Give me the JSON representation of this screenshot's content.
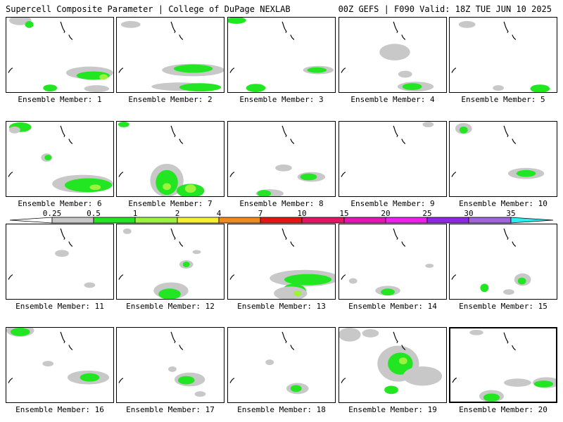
{
  "header": {
    "title_left": "Supercell Composite Parameter | College of DuPage NEXLAB",
    "title_right": "00Z GEFS | F090 Valid: 18Z TUE JUN 10 2025"
  },
  "colors": {
    "gray": "#c8c8c8",
    "green": "#22e622",
    "lightgreen": "#9cf23c",
    "yellow": "#f5f030",
    "orange": "#f08a1e",
    "red": "#e61414",
    "crimson": "#e61464",
    "magenta": "#e614b4",
    "pink": "#f01ef0",
    "purple": "#8c28e6",
    "lavender": "#a064dc",
    "cyan": "#28f0f0"
  },
  "colorbar": {
    "ticks": [
      "0.25",
      "0.5",
      "1",
      "2",
      "4",
      "7",
      "10",
      "15",
      "20",
      "25",
      "30",
      "35"
    ]
  },
  "members": [
    {
      "label": "Ensemble Member: 1"
    },
    {
      "label": "Ensemble Member: 2"
    },
    {
      "label": "Ensemble Member: 3"
    },
    {
      "label": "Ensemble Member: 4"
    },
    {
      "label": "Ensemble Member: 5"
    },
    {
      "label": "Ensemble Member: 6"
    },
    {
      "label": "Ensemble Member: 7"
    },
    {
      "label": "Ensemble Member: 8"
    },
    {
      "label": "Ensemble Member: 9"
    },
    {
      "label": "Ensemble Member: 10"
    },
    {
      "label": "Ensemble Member: 11"
    },
    {
      "label": "Ensemble Member: 12"
    },
    {
      "label": "Ensemble Member: 13"
    },
    {
      "label": "Ensemble Member: 14"
    },
    {
      "label": "Ensemble Member: 15"
    },
    {
      "label": "Ensemble Member: 16"
    },
    {
      "label": "Ensemble Member: 17"
    },
    {
      "label": "Ensemble Member: 18"
    },
    {
      "label": "Ensemble Member: 19"
    },
    {
      "label": "Ensemble Member: 20"
    }
  ]
}
